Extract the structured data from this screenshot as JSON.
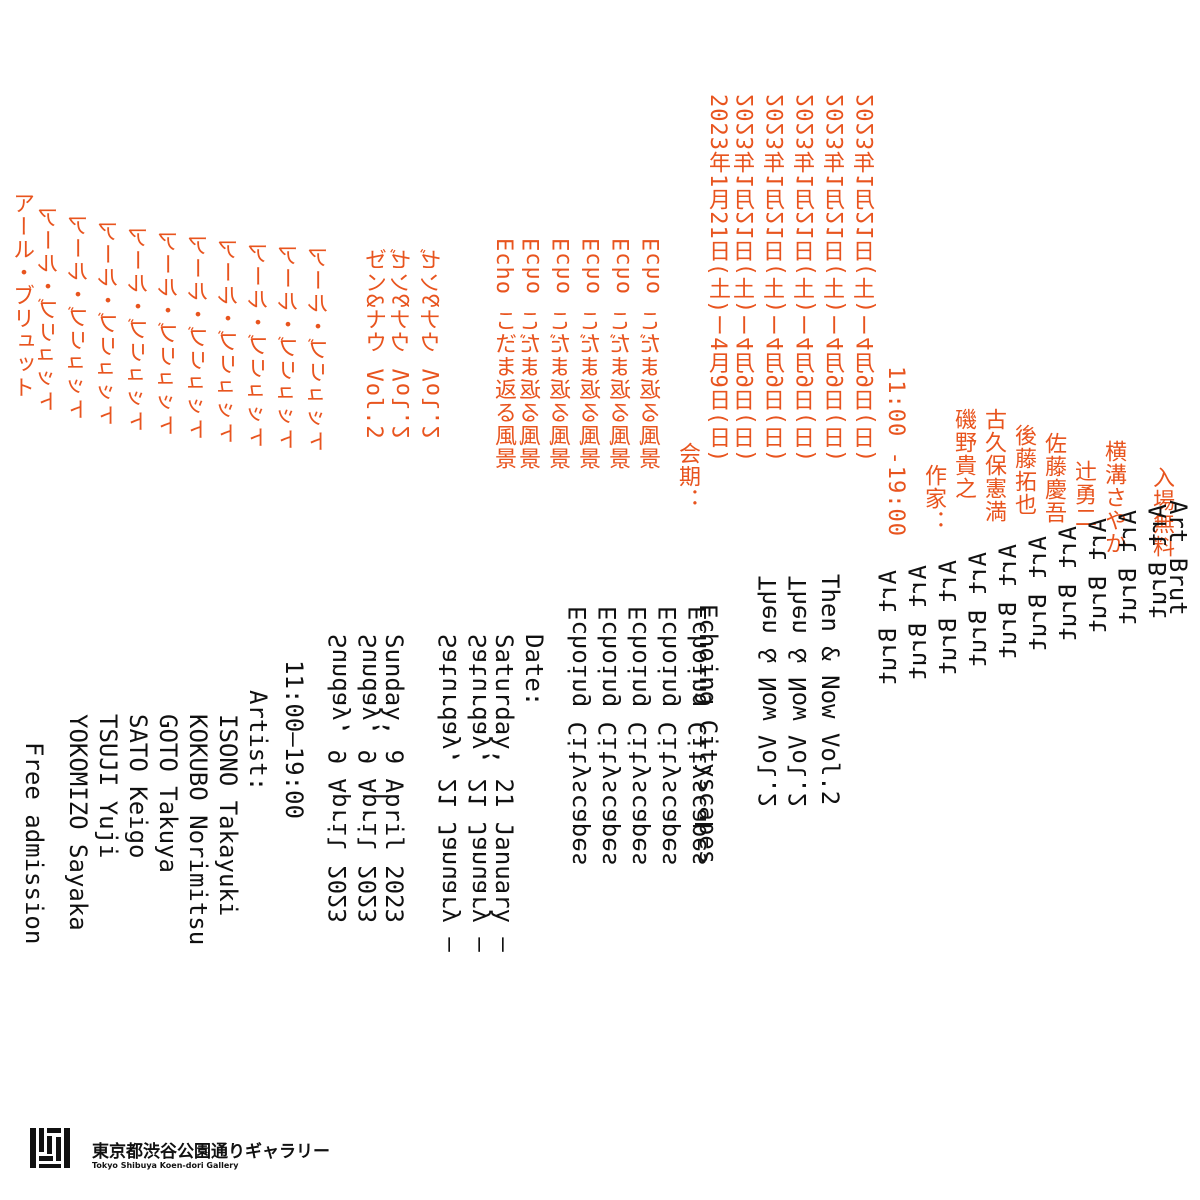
{
  "jp": {
    "title": "アール・ブリュット",
    "subtitle": "ゼン&ナウ Vol.2",
    "theme": "Echo こだま返る風景",
    "date_label": "会期：",
    "dates": "2023年1月21日(土)ー4月9日(日)",
    "hours": "11:00 -19:00",
    "artist_label": "作家：",
    "artists": [
      "磯野貴之",
      "古久保憲満",
      "後藤拓也",
      "佐藤慶吾",
      "辻勇二",
      "横溝さやか"
    ],
    "admission": "入場無料"
  },
  "en": {
    "title": "Art Brut",
    "subtitle": "Then & Now Vol.2",
    "theme": "Echoing Cityscapes",
    "date_label": "Date:",
    "dates": [
      "Saturday, 21 January –",
      "Sunday, 9 April 2023"
    ],
    "hours": "11:00–19:00",
    "artist_label": "Artist:",
    "artists": [
      "ISONO Takayuki",
      "KOKUBO Norimitsu",
      "GOTO Takuya",
      "SATO Keigo",
      "TSUJI Yuji",
      "YOKOMIZO Sayaka"
    ],
    "admission": "Free admission"
  },
  "gallery": {
    "name_jp": "東京都渋谷公園通りギャラリー",
    "name_en": "Tokyo Shibuya Koen-dori Gallery"
  },
  "colors": {
    "accent": "#e8541e",
    "text": "#111111",
    "background": "#ffffff"
  }
}
